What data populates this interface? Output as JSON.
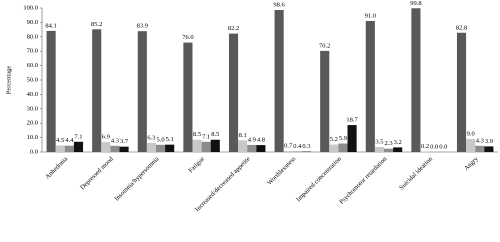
{
  "chart_data": {
    "type": "bar",
    "y_label": "Percentage",
    "categories": [
      "Anhedonia",
      "Depressed mood",
      "Insomnia/hypersomnia",
      "Fatigue",
      "Increased/decreased appetite",
      "Worthlessness",
      "Impaired concentration",
      "Psychomotor retardation",
      "Suicidal ideation",
      "Angry"
    ],
    "series": [
      {
        "color": "#595959",
        "values": [
          84.1,
          85.2,
          83.9,
          76.0,
          82.2,
          98.6,
          70.2,
          91.0,
          99.8,
          82.8
        ],
        "value_labels": [
          "84.1",
          "85.2",
          "83.9",
          "76.0",
          "82.2",
          "98.6",
          "70.2",
          "91.0",
          "99.8",
          "82.8"
        ]
      },
      {
        "color": "#c8c8c8",
        "values": [
          4.5,
          6.9,
          6.3,
          8.5,
          8.1,
          0.7,
          5.2,
          3.5,
          0.2,
          9.0
        ],
        "value_labels": [
          "4.5",
          "6.9",
          "6.3",
          "8.5",
          "8.1",
          "0.7",
          "5.2",
          "3.5",
          "0.2",
          "9.0"
        ]
      },
      {
        "color": "#8c8c8c",
        "values": [
          4.4,
          4.3,
          5.0,
          7.1,
          4.9,
          0.4,
          5.9,
          2.3,
          0.0,
          4.3
        ],
        "value_labels": [
          "4.4",
          "4.3",
          "5.0",
          "7.1",
          "4.9",
          "0.4",
          "5.9",
          "2.3",
          "0.0",
          "4.3"
        ]
      },
      {
        "color": "#111111",
        "values": [
          7.1,
          3.7,
          5.1,
          8.5,
          4.8,
          0.3,
          18.7,
          3.2,
          0.0,
          3.9
        ],
        "value_labels": [
          "7.1",
          "3.7",
          "5.1",
          "8.5",
          "4.8",
          "0.3",
          "18.7",
          "3.2",
          "0.0",
          "3.9"
        ]
      }
    ],
    "ylim": [
      0,
      100
    ],
    "yticks": [
      {
        "value": 0,
        "label": "0.0"
      },
      {
        "value": 10,
        "label": "10.0"
      },
      {
        "value": 20,
        "label": "20.0"
      },
      {
        "value": 30,
        "label": "30.0"
      },
      {
        "value": 40,
        "label": "40.0"
      },
      {
        "value": 50,
        "label": "50.0"
      },
      {
        "value": 60,
        "label": "60.0"
      },
      {
        "value": 70,
        "label": "70.0"
      },
      {
        "value": 80,
        "label": "80.0"
      },
      {
        "value": 90,
        "label": "90.0"
      },
      {
        "value": 100,
        "label": "100.0"
      }
    ],
    "grid": false
  }
}
